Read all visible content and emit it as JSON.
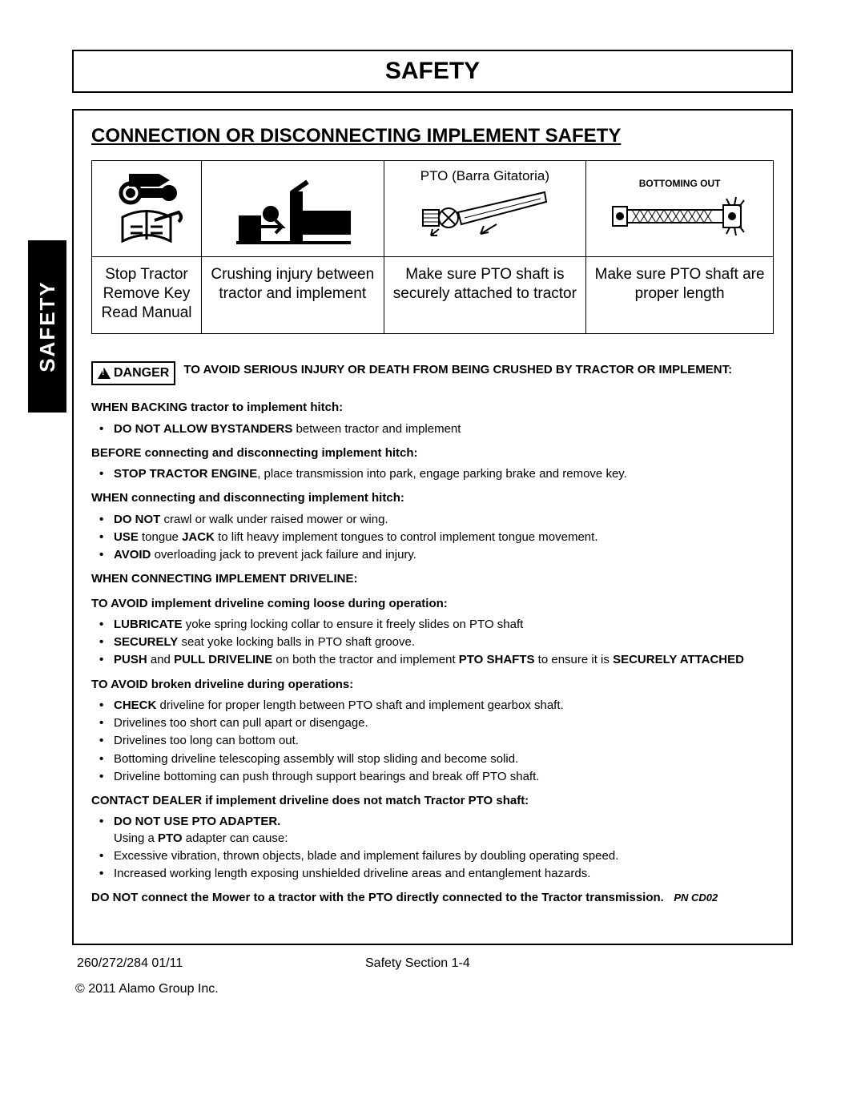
{
  "header": {
    "title": "SAFETY"
  },
  "side_tab": {
    "label": "SAFETY",
    "bg": "#000000",
    "fg": "#ffffff"
  },
  "section": {
    "title": "CONNECTION OR DISCONNECTING IMPLEMENT SAFETY"
  },
  "icon_table": {
    "cells": [
      {
        "img_label": "",
        "caption": "Stop Tractor\nRemove Key\nRead Manual"
      },
      {
        "img_label": "",
        "caption": "Crushing injury between tractor and implement"
      },
      {
        "img_label": "PTO (Barra Gitatoria)",
        "caption": "Make sure PTO shaft is securely attached to tractor"
      },
      {
        "img_label": "BOTTOMING OUT",
        "caption": "Make sure PTO shaft are proper length"
      }
    ],
    "border_color": "#000000",
    "label_fontsize": 19
  },
  "danger": {
    "badge": "DANGER",
    "text": "TO AVOID SERIOUS INJURY OR DEATH FROM BEING CRUSHED BY TRACTOR OR IMPLEMENT:"
  },
  "body": {
    "h1": "WHEN BACKING tractor to implement hitch:",
    "b1": [
      {
        "pre": "DO NOT ALLOW BYSTANDERS",
        "rest": " between tractor and implement"
      }
    ],
    "h2": "BEFORE connecting and disconnecting implement hitch:",
    "b2": [
      {
        "pre": "STOP TRACTOR ENGINE",
        "rest": ", place transmission into park, engage parking brake and remove key."
      }
    ],
    "h3": "WHEN connecting and disconnecting implement hitch:",
    "b3": [
      {
        "pre": "DO NOT",
        "rest": " crawl or walk under raised mower or wing."
      },
      {
        "pre": "USE",
        "mid": " tongue ",
        "pre2": "JACK",
        "rest": " to lift heavy implement tongues to control implement tongue movement."
      },
      {
        "pre": "AVOID",
        "rest": " overloading jack to prevent jack failure and injury."
      }
    ],
    "h4": "WHEN CONNECTING IMPLEMENT DRIVELINE:",
    "h5": "TO AVOID implement driveline coming loose during operation:",
    "b5": [
      {
        "pre": "LUBRICATE",
        "rest": "  yoke spring locking collar to ensure it freely slides on PTO shaft"
      },
      {
        "pre": "SECURELY",
        "rest": " seat yoke locking balls in PTO shaft groove."
      },
      {
        "multi": true,
        "parts": [
          {
            "b": "PUSH"
          },
          {
            "t": " and "
          },
          {
            "b": "PULL DRIVELINE"
          },
          {
            "t": " on both the tractor and implement "
          },
          {
            "b": "PTO SHAFTS"
          },
          {
            "t": " to ensure it is "
          },
          {
            "b": "SECURELY ATTACHED"
          }
        ]
      }
    ],
    "h6": "TO AVOID broken driveline during operations:",
    "b6": [
      {
        "pre": "CHECK",
        "rest": " driveline for proper length between PTO shaft and implement gearbox shaft."
      },
      {
        "rest": "Drivelines too short can pull apart or disengage."
      },
      {
        "rest": "Drivelines too long can bottom out."
      },
      {
        "rest": "Bottoming driveline telescoping assembly will stop sliding and become solid."
      },
      {
        "rest": "Driveline bottoming can push through support bearings and break off PTO shaft."
      }
    ],
    "h7": "CONTACT DEALER if implement driveline does not match Tractor PTO shaft:",
    "b7_lead": "DO NOT USE PTO ADAPTER.",
    "b7_sub_pre": "Using a ",
    "b7_sub_bold": "PTO",
    "b7_sub_rest": " adapter can cause:",
    "b7": [
      {
        "rest": "Excessive vibration, thrown objects, blade and implement failures by doubling operating speed."
      },
      {
        "rest": "Increased working length exposing unshielded driveline areas and entanglement hazards."
      }
    ],
    "final": "DO NOT connect the Mower to a tractor with the PTO directly connected to the Tractor transmission.",
    "pn": "PN CD02"
  },
  "footer": {
    "left": "260/272/284   01/11",
    "center": "Safety Section 1-4",
    "copyright": "© 2011 Alamo Group Inc."
  },
  "style": {
    "page_bg": "#ffffff",
    "text_color": "#000000",
    "border_color": "#000000",
    "header_fontsize": 30,
    "section_title_fontsize": 24,
    "body_fontsize": 15
  }
}
